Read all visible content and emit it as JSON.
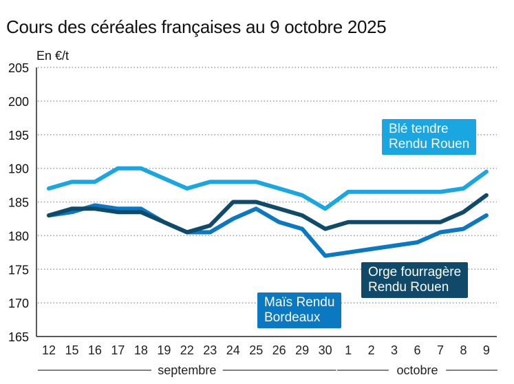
{
  "chart_data": {
    "type": "line",
    "title": "Cours des céréales françaises au 9 octobre 2025",
    "ylabel": "En €/t",
    "xlabel": "",
    "ylim": [
      165,
      205
    ],
    "yticks": [
      165,
      170,
      175,
      180,
      185,
      190,
      195,
      200,
      205
    ],
    "grid": true,
    "categories": [
      "12",
      "15",
      "16",
      "17",
      "18",
      "19",
      "22",
      "23",
      "24",
      "25",
      "26",
      "29",
      "30",
      "1",
      "2",
      "3",
      "6",
      "7",
      "8",
      "9"
    ],
    "months": [
      {
        "label": "septembre",
        "from": 0,
        "to": 12
      },
      {
        "label": "octobre",
        "from": 13,
        "to": 19
      }
    ],
    "series": [
      {
        "name": "Blé tendre Rendu Rouen",
        "label_lines": [
          "Blé tendre",
          "Rendu Rouen"
        ],
        "color": "#1aa6e0",
        "values": [
          187,
          188,
          188,
          190,
          190,
          188.5,
          187,
          188,
          188,
          188,
          187,
          186,
          184,
          186.5,
          186.5,
          186.5,
          186.5,
          186.5,
          187,
          189.5
        ]
      },
      {
        "name": "Orge fourragère Rendu Rouen",
        "label_lines": [
          "Orge fourragère",
          "Rendu Rouen"
        ],
        "color": "#104a6b",
        "values": [
          183,
          184,
          184,
          183.5,
          183.5,
          182,
          180.5,
          181.5,
          185,
          185,
          184,
          183,
          181,
          182,
          182,
          182,
          182,
          182,
          183.5,
          186
        ]
      },
      {
        "name": "Maïs Rendu Bordeaux",
        "label_lines": [
          "Maïs Rendu",
          "Bordeaux"
        ],
        "color": "#0b78c2",
        "values": [
          183,
          183.5,
          184.5,
          184,
          184,
          182,
          180.5,
          180.5,
          182.5,
          184,
          182,
          181,
          177,
          177.5,
          178,
          178.5,
          179,
          180.5,
          181,
          183
        ]
      }
    ]
  }
}
